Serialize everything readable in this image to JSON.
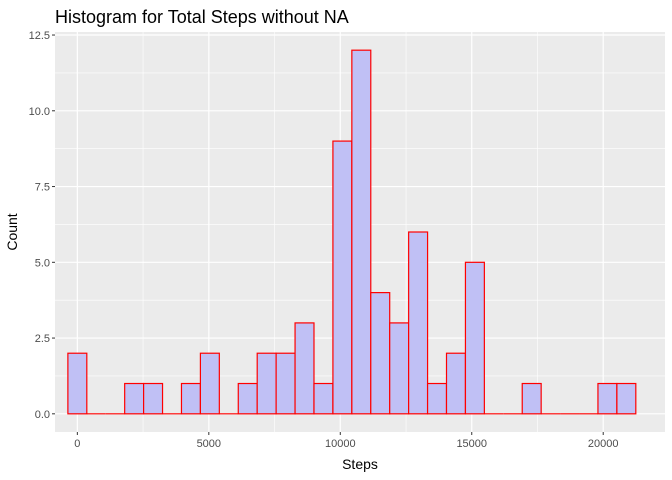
{
  "chart_data": {
    "type": "bar",
    "title": "Histogram for Total Steps without NA",
    "xlabel": "Steps",
    "ylabel": "Count",
    "xlim": [
      -850,
      22350
    ],
    "ylim": [
      -0.6,
      12.6
    ],
    "bin_width": 720,
    "bins": [
      {
        "start": -360,
        "count": 2
      },
      {
        "start": 360,
        "count": 0
      },
      {
        "start": 1080,
        "count": 0
      },
      {
        "start": 1800,
        "count": 1
      },
      {
        "start": 2520,
        "count": 1
      },
      {
        "start": 3240,
        "count": 0
      },
      {
        "start": 3960,
        "count": 1
      },
      {
        "start": 4680,
        "count": 2
      },
      {
        "start": 5400,
        "count": 0
      },
      {
        "start": 6120,
        "count": 1
      },
      {
        "start": 6840,
        "count": 2
      },
      {
        "start": 7560,
        "count": 2
      },
      {
        "start": 8280,
        "count": 3
      },
      {
        "start": 9000,
        "count": 1
      },
      {
        "start": 9720,
        "count": 9
      },
      {
        "start": 10440,
        "count": 12
      },
      {
        "start": 11160,
        "count": 4
      },
      {
        "start": 11880,
        "count": 3
      },
      {
        "start": 12600,
        "count": 6
      },
      {
        "start": 13320,
        "count": 1
      },
      {
        "start": 14040,
        "count": 2
      },
      {
        "start": 14760,
        "count": 5
      },
      {
        "start": 15480,
        "count": 0
      },
      {
        "start": 16200,
        "count": 0
      },
      {
        "start": 16920,
        "count": 1
      },
      {
        "start": 17640,
        "count": 0
      },
      {
        "start": 18360,
        "count": 0
      },
      {
        "start": 19080,
        "count": 0
      },
      {
        "start": 19800,
        "count": 1
      },
      {
        "start": 20520,
        "count": 1
      }
    ],
    "x_ticks": [
      0,
      5000,
      10000,
      15000,
      20000
    ],
    "x_tick_labels": [
      "0",
      "5000",
      "10000",
      "15000",
      "20000"
    ],
    "y_ticks": [
      0,
      2.5,
      5,
      7.5,
      10,
      12.5
    ],
    "y_tick_labels": [
      "0.0",
      "2.5",
      "5.0",
      "7.5",
      "10.0",
      "12.5"
    ],
    "grid": true,
    "colors": {
      "panel_background": "#ebebeb",
      "grid_major": "#ffffff",
      "bar_fill": "#c0c0f5",
      "bar_stroke": "#ff0000"
    }
  }
}
